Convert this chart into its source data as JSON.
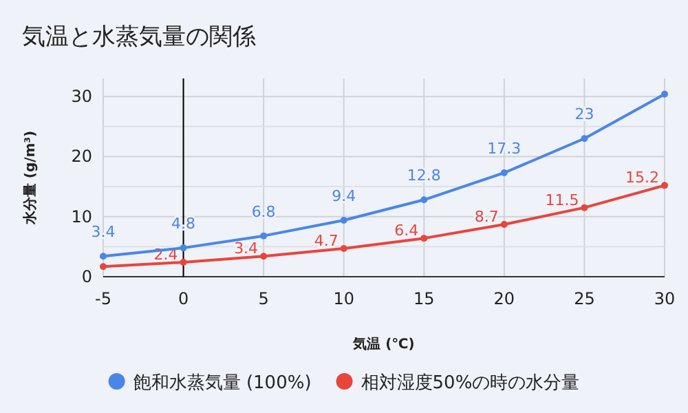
{
  "chart_data": {
    "type": "line",
    "title": "気温と水蒸気量の関係",
    "xlabel": "気温 (℃)",
    "ylabel": "水分量 (g/m³)",
    "x": [
      -5,
      0,
      5,
      10,
      15,
      20,
      25,
      30
    ],
    "series": [
      {
        "name": "飽和水蒸気量 (100%)",
        "color": "#4a86e8",
        "values": [
          3.4,
          4.8,
          6.8,
          9.4,
          12.8,
          17.3,
          23,
          30.4
        ],
        "value_labels": [
          "3.4",
          "4.8",
          "6.8",
          "9.4",
          "12.8",
          "17.3",
          "23",
          null
        ]
      },
      {
        "name": "相対湿度50%の時の水分量",
        "color": "#e8453c",
        "values": [
          1.7,
          2.4,
          3.4,
          4.7,
          6.4,
          8.7,
          11.5,
          15.2
        ],
        "value_labels": [
          null,
          "2.4",
          "3.4",
          "4.7",
          "6.4",
          "8.7",
          "11.5",
          "15.2"
        ]
      }
    ],
    "xlim": [
      -5,
      30
    ],
    "ylim": [
      0,
      33
    ],
    "xticks": [
      -5,
      0,
      5,
      10,
      15,
      20,
      25,
      30
    ],
    "yticks": [
      0,
      {
        "value": 5,
        "label": null
      },
      10,
      {
        "value": 15,
        "label": null
      },
      20,
      {
        "value": 25,
        "label": null
      },
      30
    ],
    "ref_lines": [
      {
        "axis": "x",
        "value": 0,
        "color": "#000000"
      }
    ],
    "grid": true,
    "legend": "bottom",
    "marker": "circle",
    "line_style": "solid"
  }
}
